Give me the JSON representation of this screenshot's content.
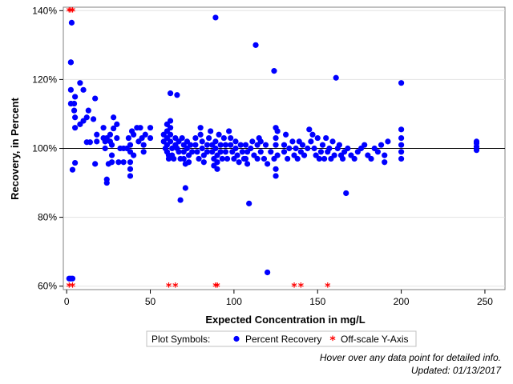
{
  "chart_data": {
    "type": "scatter",
    "xlabel": "Expected Concentration in mg/L",
    "ylabel": "Recovery, in Percent",
    "xlim": [
      -2,
      262
    ],
    "ylim": [
      59,
      141
    ],
    "x_ticks": [
      0,
      50,
      100,
      150,
      200,
      250
    ],
    "y_ticks": [
      60,
      80,
      100,
      120,
      140
    ],
    "x_tick_labels": [
      "0",
      "50",
      "100",
      "150",
      "200",
      "250"
    ],
    "y_tick_labels": [
      "60%",
      "80%",
      "100%",
      "120%",
      "140%"
    ],
    "reference_line_y": 100,
    "grid": "horizontal",
    "legend": {
      "placement": "bottom-center",
      "title": "Plot Symbols:",
      "items": [
        {
          "label": "Percent Recovery",
          "marker": "dot",
          "color": "#0000ff"
        },
        {
          "label": "Off-scale Y-Axis",
          "marker": "asterisk",
          "color": "#ff0000"
        }
      ]
    },
    "annotations": [
      "Hover over any data point for detailed info.",
      "Updated: 01/13/2017"
    ],
    "series": [
      {
        "name": "Percent Recovery",
        "color": "#0000ff",
        "points": [
          [
            1.5,
            62.2
          ],
          [
            2.5,
            62.2
          ],
          [
            3.5,
            62.2
          ],
          [
            2.5,
            113
          ],
          [
            2.5,
            117
          ],
          [
            2.5,
            125
          ],
          [
            2.5,
            125
          ],
          [
            3,
            136.5
          ],
          [
            3.5,
            93.8
          ],
          [
            4.5,
            113
          ],
          [
            4.5,
            111
          ],
          [
            5,
            115
          ],
          [
            5,
            109
          ],
          [
            5,
            106
          ],
          [
            5,
            95.8
          ],
          [
            8,
            119
          ],
          [
            8,
            107
          ],
          [
            10,
            108
          ],
          [
            10,
            117
          ],
          [
            12,
            101.8
          ],
          [
            12,
            109
          ],
          [
            13,
            111
          ],
          [
            14,
            101.8
          ],
          [
            16,
            108.5
          ],
          [
            17,
            114.5
          ],
          [
            17,
            95.5
          ],
          [
            18,
            102
          ],
          [
            18,
            104
          ],
          [
            22,
            106
          ],
          [
            22,
            103
          ],
          [
            23,
            102
          ],
          [
            23,
            100
          ],
          [
            24,
            91
          ],
          [
            24,
            90
          ],
          [
            24,
            103
          ],
          [
            25,
            95.5
          ],
          [
            26,
            104
          ],
          [
            26,
            102
          ],
          [
            27,
            101
          ],
          [
            27,
            98
          ],
          [
            27,
            96
          ],
          [
            28,
            109
          ],
          [
            28,
            105.8
          ],
          [
            30,
            107
          ],
          [
            30,
            103
          ],
          [
            31,
            96
          ],
          [
            32,
            100
          ],
          [
            34,
            100
          ],
          [
            34,
            96
          ],
          [
            36,
            100
          ],
          [
            37,
            103
          ],
          [
            38,
            101
          ],
          [
            38,
            99
          ],
          [
            38,
            96
          ],
          [
            38,
            94
          ],
          [
            38,
            92
          ],
          [
            39,
            105
          ],
          [
            40,
            104
          ],
          [
            40,
            98
          ],
          [
            42,
            106
          ],
          [
            43,
            102
          ],
          [
            44,
            106
          ],
          [
            45,
            103
          ],
          [
            46,
            101
          ],
          [
            46,
            99
          ],
          [
            47,
            104
          ],
          [
            50,
            106
          ],
          [
            50,
            103
          ],
          [
            58,
            104
          ],
          [
            58,
            102
          ],
          [
            59,
            100
          ],
          [
            60,
            107
          ],
          [
            60,
            105
          ],
          [
            60,
            103
          ],
          [
            60,
            101
          ],
          [
            60,
            99
          ],
          [
            61,
            97
          ],
          [
            61,
            98
          ],
          [
            62,
            116
          ],
          [
            62,
            108
          ],
          [
            62,
            106
          ],
          [
            62,
            104
          ],
          [
            62,
            102
          ],
          [
            63,
            100
          ],
          [
            63,
            98
          ],
          [
            64,
            97
          ],
          [
            65,
            103
          ],
          [
            65,
            101
          ],
          [
            66,
            115.5
          ],
          [
            66,
            100
          ],
          [
            67,
            102
          ],
          [
            67,
            99
          ],
          [
            68,
            97
          ],
          [
            68,
            85
          ],
          [
            69,
            103
          ],
          [
            70,
            101
          ],
          [
            70,
            99
          ],
          [
            70,
            97
          ],
          [
            71,
            88.5
          ],
          [
            71,
            95.5
          ],
          [
            72,
            102
          ],
          [
            72,
            100
          ],
          [
            73,
            98
          ],
          [
            73,
            96
          ],
          [
            74,
            101
          ],
          [
            75,
            99
          ],
          [
            77,
            103
          ],
          [
            77,
            101
          ],
          [
            78,
            99
          ],
          [
            79,
            97
          ],
          [
            80,
            106
          ],
          [
            80,
            104
          ],
          [
            81,
            102
          ],
          [
            81,
            100
          ],
          [
            82,
            98
          ],
          [
            82,
            96
          ],
          [
            84,
            101
          ],
          [
            84,
            99
          ],
          [
            85,
            103
          ],
          [
            86,
            105
          ],
          [
            87,
            101
          ],
          [
            87,
            99
          ],
          [
            88,
            97
          ],
          [
            88,
            95
          ],
          [
            89,
            138
          ],
          [
            89,
            102
          ],
          [
            89,
            100
          ],
          [
            90,
            98
          ],
          [
            90,
            94
          ],
          [
            90,
            96
          ],
          [
            91,
            104
          ],
          [
            92,
            101
          ],
          [
            92,
            99
          ],
          [
            93,
            97
          ],
          [
            94,
            103
          ],
          [
            95,
            101
          ],
          [
            95,
            99
          ],
          [
            96,
            97
          ],
          [
            97,
            105
          ],
          [
            98,
            103
          ],
          [
            98,
            101
          ],
          [
            99,
            99
          ],
          [
            100,
            97
          ],
          [
            101,
            102
          ],
          [
            101,
            100
          ],
          [
            102,
            98
          ],
          [
            103,
            96
          ],
          [
            104,
            101
          ],
          [
            105,
            99
          ],
          [
            106,
            97
          ],
          [
            107,
            101
          ],
          [
            107,
            97
          ],
          [
            108,
            99
          ],
          [
            108,
            95.5
          ],
          [
            109,
            84
          ],
          [
            110,
            100
          ],
          [
            111,
            102
          ],
          [
            112,
            98
          ],
          [
            113,
            130
          ],
          [
            114,
            101
          ],
          [
            114,
            97
          ],
          [
            115,
            103
          ],
          [
            116,
            99
          ],
          [
            116,
            102
          ],
          [
            118,
            97
          ],
          [
            119,
            101
          ],
          [
            120,
            95.5
          ],
          [
            120,
            64
          ],
          [
            122,
            99
          ],
          [
            124,
            97
          ],
          [
            124,
            122.5
          ],
          [
            125,
            103
          ],
          [
            125,
            101
          ],
          [
            125,
            106
          ],
          [
            126,
            98
          ],
          [
            125,
            94
          ],
          [
            125,
            92
          ],
          [
            126,
            105
          ],
          [
            130,
            101
          ],
          [
            130,
            99
          ],
          [
            131,
            104
          ],
          [
            132,
            97
          ],
          [
            133,
            100
          ],
          [
            135,
            102
          ],
          [
            136,
            98
          ],
          [
            137,
            100
          ],
          [
            138,
            97
          ],
          [
            139,
            102
          ],
          [
            140,
            99
          ],
          [
            141,
            101
          ],
          [
            142,
            98
          ],
          [
            144,
            100
          ],
          [
            145,
            105.5
          ],
          [
            146,
            102
          ],
          [
            147,
            104
          ],
          [
            148,
            100
          ],
          [
            149,
            98
          ],
          [
            150,
            103
          ],
          [
            151,
            97
          ],
          [
            152,
            99
          ],
          [
            153,
            101
          ],
          [
            154,
            97
          ],
          [
            155,
            103
          ],
          [
            156,
            99
          ],
          [
            157,
            100
          ],
          [
            158,
            97
          ],
          [
            159,
            102
          ],
          [
            160,
            98
          ],
          [
            161,
            120.5
          ],
          [
            162,
            100
          ],
          [
            163,
            101
          ],
          [
            164,
            98
          ],
          [
            165,
            97
          ],
          [
            166,
            99
          ],
          [
            167,
            87
          ],
          [
            168,
            100
          ],
          [
            170,
            98
          ],
          [
            172,
            97
          ],
          [
            174,
            99
          ],
          [
            176,
            100
          ],
          [
            178,
            101
          ],
          [
            180,
            98
          ],
          [
            182,
            97
          ],
          [
            184,
            100
          ],
          [
            186,
            99
          ],
          [
            188,
            101
          ],
          [
            190,
            98
          ],
          [
            190,
            96
          ],
          [
            192,
            102
          ],
          [
            200,
            97
          ],
          [
            200,
            99
          ],
          [
            200,
            101
          ],
          [
            200,
            103
          ],
          [
            200,
            105.5
          ],
          [
            200,
            119
          ],
          [
            245,
            99.5
          ],
          [
            245,
            100.5
          ],
          [
            245,
            101.5
          ],
          [
            245,
            102
          ]
        ]
      },
      {
        "name": "Off-scale Y-Axis",
        "color": "#ff0000",
        "points": [
          [
            1.5,
            140
          ],
          [
            2.5,
            140
          ],
          [
            3.5,
            140
          ],
          [
            1.5,
            60
          ],
          [
            3.5,
            60
          ],
          [
            61,
            60
          ],
          [
            65,
            60
          ],
          [
            89,
            60
          ],
          [
            90,
            60
          ],
          [
            136,
            60
          ],
          [
            140,
            60
          ],
          [
            156,
            60
          ]
        ]
      }
    ]
  }
}
